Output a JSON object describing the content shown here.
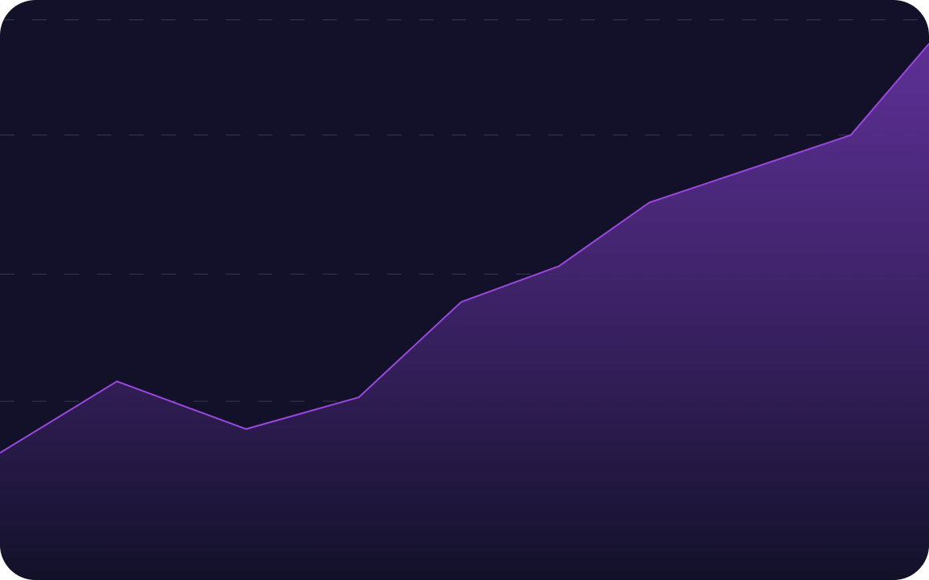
{
  "colors": {
    "background": "#121129",
    "line": "#9a47e0",
    "area_top": "#6a35a8",
    "area_bottom": "#121129",
    "grid": "#3a3852"
  },
  "chart_data": {
    "type": "area",
    "title": "",
    "xlabel": "",
    "ylabel": "",
    "grid": true,
    "legend": "none",
    "x": [
      0,
      1,
      2,
      3,
      4,
      5,
      6,
      7,
      8
    ],
    "series": [
      {
        "values": [
          22,
          40,
          28,
          36,
          60,
          69,
          85,
          102,
          125
        ]
      }
    ],
    "gridlines_y": [
      0,
      35,
      67,
      102,
      131
    ],
    "ylim": [
      -10,
      136
    ]
  }
}
